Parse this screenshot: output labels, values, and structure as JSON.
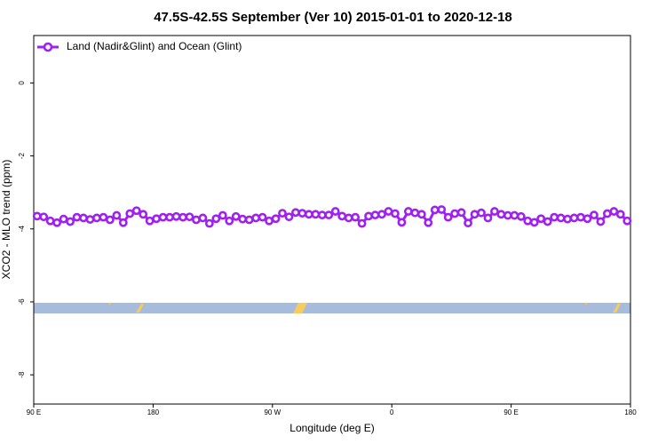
{
  "chart_data": {
    "type": "line",
    "title": "47.5S-42.5S September (Ver 10)   2015-01-01 to 2020-12-18",
    "xlabel": "Longitude (deg E)",
    "ylabel": "XCO2 - MLO trend (ppm)",
    "legend": "upper left",
    "xlim": [
      90,
      540
    ],
    "ylim": [
      -8.8,
      1.3
    ],
    "xticks": [
      {
        "value": 90,
        "label": "90 E"
      },
      180,
      {
        "value": 270,
        "label": "90 W"
      },
      {
        "value": 360,
        "label": "0"
      },
      {
        "value": 450,
        "label": "90 E"
      },
      {
        "value": 540,
        "label": "180"
      }
    ],
    "yticks": [
      0,
      -2,
      -4,
      -6,
      -8
    ],
    "x": [
      92.5,
      97.5,
      102.5,
      107.5,
      112.5,
      117.5,
      122.5,
      127.5,
      132.5,
      137.5,
      142.5,
      147.5,
      152.5,
      157.5,
      162.5,
      167.5,
      172.5,
      177.5,
      182.5,
      187.5,
      192.5,
      197.5,
      202.5,
      207.5,
      212.5,
      217.5,
      222.5,
      227.5,
      232.5,
      237.5,
      242.5,
      247.5,
      252.5,
      257.5,
      262.5,
      267.5,
      272.5,
      277.5,
      282.5,
      287.5,
      292.5,
      297.5,
      302.5,
      307.5,
      312.5,
      317.5,
      322.5,
      327.5,
      332.5,
      337.5,
      342.5,
      347.5,
      352.5,
      357.5,
      362.5,
      367.5,
      372.5,
      377.5,
      382.5,
      387.5,
      392.5,
      397.5,
      402.5,
      407.5,
      412.5,
      417.5,
      422.5,
      427.5,
      432.5,
      437.5,
      442.5,
      447.5,
      452.5,
      457.5,
      462.5,
      467.5,
      472.5,
      477.5,
      482.5,
      487.5,
      492.5,
      497.5,
      502.5,
      507.5,
      512.5,
      517.5,
      522.5,
      527.5,
      532.5,
      537.5
    ],
    "series": [
      {
        "name": "Land (Nadir&Glint) and Ocean (Glint)",
        "color": "#a020f0",
        "values": [
          -3.65,
          -3.67,
          -3.78,
          -3.83,
          -3.73,
          -3.8,
          -3.68,
          -3.7,
          -3.74,
          -3.7,
          -3.68,
          -3.75,
          -3.63,
          -3.83,
          -3.58,
          -3.5,
          -3.6,
          -3.78,
          -3.72,
          -3.68,
          -3.68,
          -3.66,
          -3.68,
          -3.67,
          -3.75,
          -3.7,
          -3.85,
          -3.72,
          -3.63,
          -3.78,
          -3.66,
          -3.73,
          -3.75,
          -3.7,
          -3.68,
          -3.78,
          -3.72,
          -3.57,
          -3.67,
          -3.55,
          -3.57,
          -3.6,
          -3.6,
          -3.62,
          -3.62,
          -3.52,
          -3.65,
          -3.7,
          -3.68,
          -3.85,
          -3.65,
          -3.62,
          -3.6,
          -3.52,
          -3.58,
          -3.82,
          -3.52,
          -3.56,
          -3.6,
          -3.83,
          -3.48,
          -3.47,
          -3.68,
          -3.58,
          -3.55,
          -3.84,
          -3.6,
          -3.56,
          -3.7,
          -3.52,
          -3.6,
          -3.63,
          -3.63,
          -3.66,
          -3.78,
          -3.82,
          -3.72,
          -3.8,
          -3.68,
          -3.7,
          -3.73,
          -3.7,
          -3.68,
          -3.72,
          -3.62,
          -3.8,
          -3.58,
          -3.52,
          -3.6,
          -3.78
        ]
      }
    ]
  }
}
